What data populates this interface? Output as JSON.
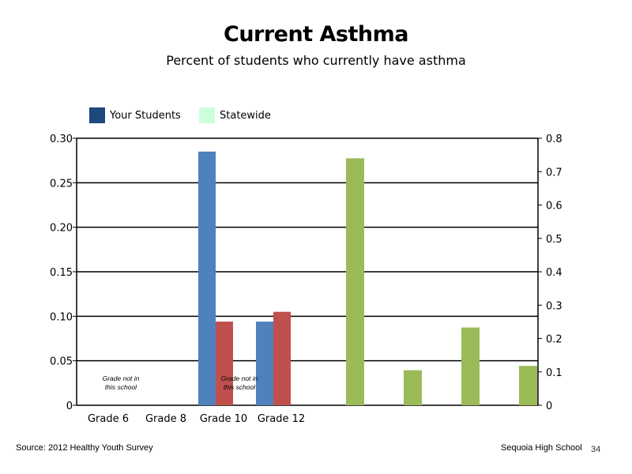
{
  "title": "Current Asthma",
  "subtitle": "Percent of students who currently have asthma",
  "legend": [
    {
      "label": "Your Students",
      "color": "#1f497d"
    },
    {
      "label": "Statewide",
      "color": "#ccffdd"
    }
  ],
  "chart_data": {
    "type": "bar",
    "categories": [
      "Grade 6",
      "Grade 8",
      "Grade 10",
      "Grade 12"
    ],
    "left_axis": {
      "ylim": [
        0,
        0.3
      ],
      "ticks": [
        "0",
        "0.05",
        "0.10",
        "0.15",
        "0.20",
        "0.25",
        "0.30"
      ]
    },
    "right_axis": {
      "ylim": [
        0,
        0.8
      ],
      "ticks": [
        "0",
        "0.1",
        "0.2",
        "0.3",
        "0.4",
        "0.5",
        "0.6",
        "0.7",
        "0.8"
      ]
    },
    "series": [
      {
        "color": "#4f81bd",
        "axis": "left",
        "values": [
          null,
          null,
          0.285,
          0.094
        ]
      },
      {
        "color": "#c0504d",
        "axis": "left",
        "values": [
          null,
          null,
          0.094,
          0.105
        ]
      },
      {
        "color": "#9bbb59",
        "axis": "right",
        "values": [
          0.74,
          0.105,
          0.233,
          0.118
        ]
      }
    ],
    "annotations": [
      {
        "text_lines": [
          "Grade not in",
          "this school"
        ],
        "category": "Grade 6"
      },
      {
        "text_lines": [
          "Grade not in",
          "this school"
        ],
        "category": "Grade 10"
      }
    ],
    "grid": true
  },
  "footer": {
    "source": "Source: 2012 Healthy Youth Survey",
    "school": "Sequoia  High  School",
    "page_number": "34"
  }
}
